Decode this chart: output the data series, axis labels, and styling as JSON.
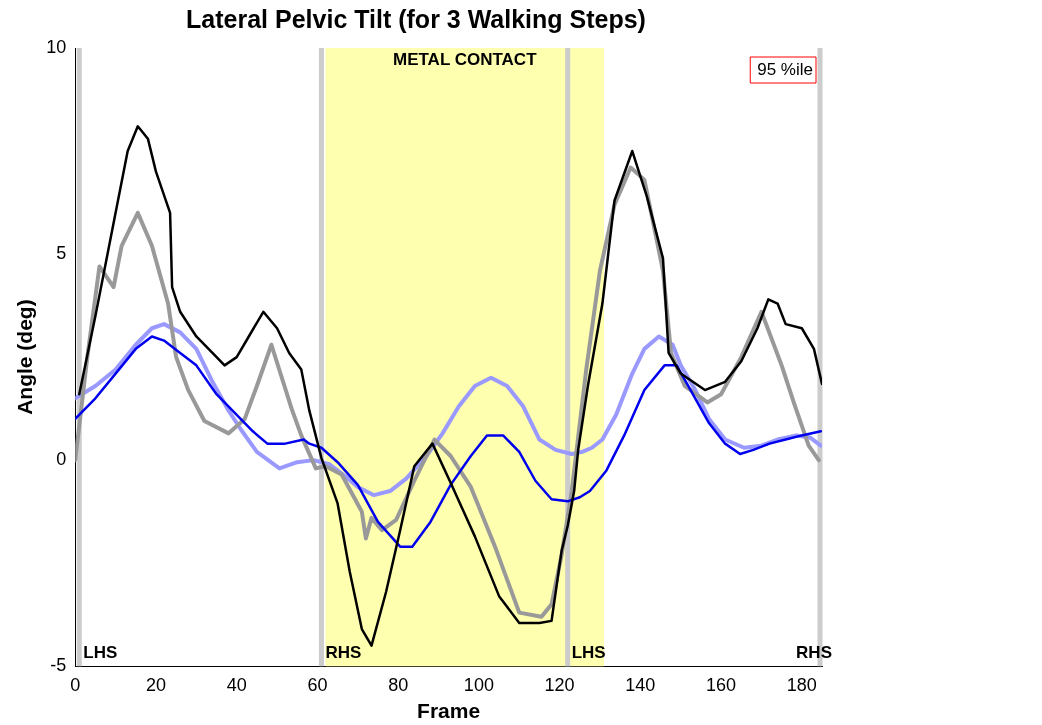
{
  "chart_data": {
    "type": "line",
    "title": "Lateral Pelvic Tilt (for 3 Walking Steps)",
    "xlabel": "Frame",
    "ylabel": "Angle (deg)",
    "xlim": [
      0,
      185
    ],
    "xticks": [
      0,
      20,
      40,
      60,
      80,
      100,
      120,
      140,
      160,
      180
    ],
    "ylim": [
      -5,
      10
    ],
    "yticks": [
      -5,
      0,
      5,
      10
    ],
    "grid": false,
    "marker": "none",
    "line_style": "solid",
    "annotations": [
      "95 %ile"
    ],
    "bands": [
      {
        "axis": "x",
        "from": 62,
        "to": 131,
        "label": "METAL CONTACT",
        "color": "#ffffb0"
      }
    ],
    "ref_lines": [
      {
        "axis": "x",
        "value": 1,
        "label": "LHS",
        "color": "#cccccc"
      },
      {
        "axis": "x",
        "value": 61,
        "label": "RHS",
        "color": "#cccccc"
      },
      {
        "axis": "x",
        "value": 122,
        "label": "LHS",
        "color": "#cccccc"
      },
      {
        "axis": "x",
        "value": 184.5,
        "label": "RHS",
        "color": "#cccccc"
      }
    ],
    "series": [
      {
        "color": "#000000",
        "x": [
          1,
          5,
          10,
          13,
          15.5,
          18,
          20,
          23.5,
          24,
          26,
          30,
          34,
          37,
          40,
          43,
          46.6,
          50,
          53,
          56,
          58,
          61,
          65,
          68,
          71,
          73.4,
          77,
          80.5,
          84,
          88.5,
          93,
          99,
          105,
          110,
          115,
          118,
          120.5,
          122,
          123.6,
          124.6,
          127,
          130.6,
          133.6,
          138,
          141.6,
          145.6,
          147,
          150,
          153,
          156,
          161,
          165,
          169,
          171.7,
          174,
          176,
          180,
          183,
          185
        ],
        "values": [
          1.6,
          3.5,
          6,
          7.5,
          8.1,
          7.8,
          7,
          6,
          4.2,
          3.6,
          3.0,
          2.6,
          2.3,
          2.5,
          3.0,
          3.6,
          3.2,
          2.6,
          2.2,
          1.2,
          0.05,
          -1.05,
          -2.7,
          -4.1,
          -4.5,
          -3.2,
          -1.7,
          -0.15,
          0.4,
          -0.55,
          -1.85,
          -3.3,
          -3.95,
          -3.95,
          -3.9,
          -2.2,
          -1.6,
          -0.75,
          0.25,
          1.8,
          3.8,
          6.3,
          7.5,
          6.4,
          4.9,
          2.6,
          2.1,
          1.9,
          1.7,
          1.9,
          2.4,
          3.2,
          3.9,
          3.8,
          3.3,
          3.2,
          2.7,
          1.85
        ]
      },
      {
        "color": "#0000ee",
        "x": [
          0,
          5,
          10,
          15,
          19,
          22,
          26,
          30,
          35,
          40,
          44,
          47.6,
          52,
          56.6,
          58,
          61,
          65,
          70,
          75,
          80.5,
          83.5,
          88,
          93,
          98,
          102,
          106,
          110,
          114,
          118,
          122,
          125,
          127.5,
          131.6,
          136,
          141,
          146,
          149,
          153,
          157,
          161,
          164.7,
          168,
          172,
          176,
          180,
          184.7
        ],
        "values": [
          1.0,
          1.5,
          2.1,
          2.7,
          3.0,
          2.9,
          2.6,
          2.3,
          1.6,
          1.1,
          0.7,
          0.4,
          0.4,
          0.5,
          0.4,
          0.3,
          -0.05,
          -0.6,
          -1.5,
          -2.1,
          -2.1,
          -1.5,
          -0.6,
          0.1,
          0.6,
          0.6,
          0.2,
          -0.5,
          -0.95,
          -1.0,
          -0.9,
          -0.75,
          -0.25,
          0.6,
          1.7,
          2.3,
          2.3,
          1.6,
          0.9,
          0.4,
          0.15,
          0.25,
          0.4,
          0.5,
          0.6,
          0.7
        ]
      },
      {
        "color": "#999999",
        "x": [
          0,
          3,
          6,
          9.5,
          11.5,
          15.5,
          19,
          23,
          25,
          28,
          32,
          38,
          42,
          45,
          48.6,
          53.6,
          56,
          59.6,
          62,
          66,
          71,
          72,
          73.4,
          76,
          79.5,
          84,
          89,
          93,
          98,
          104,
          110,
          115.5,
          118,
          120.5,
          123,
          126.6,
          130,
          133.6,
          137.6,
          141,
          145.6,
          147.6,
          151,
          156.6,
          160,
          165,
          170,
          175,
          178,
          181.7,
          184.2
        ],
        "values": [
          0.0,
          2.5,
          4.7,
          4.2,
          5.2,
          6.0,
          5.2,
          3.8,
          2.5,
          1.7,
          0.95,
          0.65,
          1.0,
          1.8,
          2.8,
          1.25,
          0.6,
          -0.2,
          -0.15,
          -0.35,
          -1.25,
          -1.9,
          -1.4,
          -1.7,
          -1.45,
          -0.5,
          0.5,
          0.1,
          -0.65,
          -2.1,
          -3.7,
          -3.8,
          -3.5,
          -2.3,
          -0.75,
          2.2,
          4.6,
          6.2,
          7.1,
          6.8,
          4.6,
          2.6,
          1.8,
          1.4,
          1.6,
          2.5,
          3.6,
          2.3,
          1.4,
          0.35,
          0.0
        ]
      },
      {
        "color": "#9999ff",
        "x": [
          0,
          5,
          10,
          15,
          19,
          22,
          26,
          30,
          34,
          38,
          41,
          45,
          50.6,
          55,
          59,
          63,
          67,
          70,
          74,
          78,
          82,
          87,
          91,
          95,
          99,
          103,
          107,
          111,
          115,
          119,
          123,
          125.6,
          128,
          130.6,
          134,
          138,
          141,
          144.6,
          148,
          150,
          153.6,
          157,
          161,
          165.7,
          170,
          174,
          178.7,
          182,
          184.7
        ],
        "values": [
          1.5,
          1.8,
          2.2,
          2.8,
          3.2,
          3.3,
          3.1,
          2.7,
          1.9,
          1.2,
          0.75,
          0.2,
          -0.2,
          -0.05,
          0.0,
          -0.1,
          -0.4,
          -0.65,
          -0.85,
          -0.75,
          -0.45,
          0.1,
          0.65,
          1.3,
          1.8,
          2.0,
          1.8,
          1.3,
          0.5,
          0.25,
          0.15,
          0.2,
          0.3,
          0.5,
          1.1,
          2.1,
          2.7,
          3.0,
          2.8,
          2.3,
          1.7,
          1.0,
          0.5,
          0.3,
          0.35,
          0.5,
          0.6,
          0.55,
          0.35
        ]
      }
    ]
  }
}
